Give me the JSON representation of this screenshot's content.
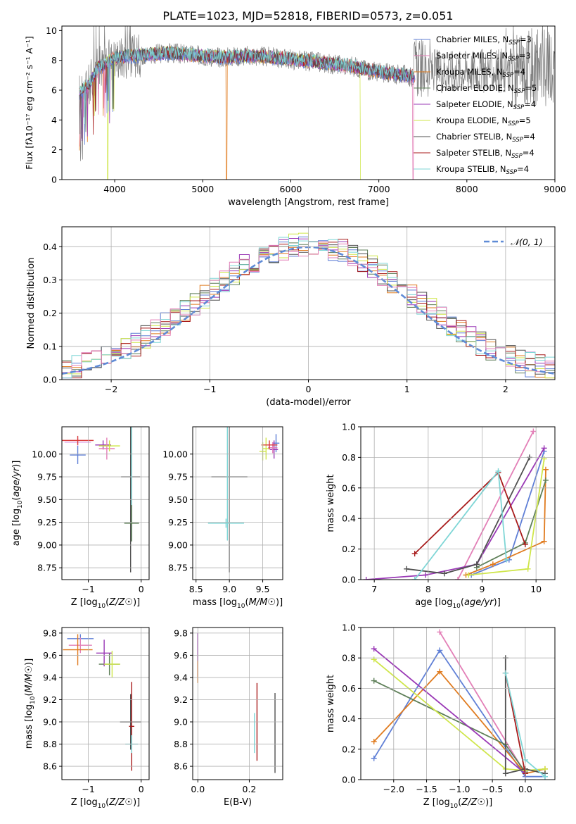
{
  "figure_title": "PLATE=1023, MJD=52818, FIBERID=0573, z=0.051",
  "colors": [
    "#5f7fd6",
    "#e37fb7",
    "#e07b1f",
    "#5e7f58",
    "#9a39b6",
    "#cfe64a",
    "#505050",
    "#a81b1b",
    "#7fd6d6"
  ],
  "colors_panel3": [
    "#e1a9ea",
    "#5f7fd6",
    "#d83b3b",
    "#9a39b6",
    "#e37fb7",
    "#cfe64a",
    "#505050",
    "#7fd6d6",
    "#5e7f58"
  ],
  "chart_data": [
    {
      "id": "spectrum",
      "type": "line",
      "xlabel": "wavelength [Angstrom, rest frame]",
      "ylabel": "Flux [fλ10⁻¹⁷ erg cm⁻² s⁻¹ A⁻¹]",
      "xlim": [
        3400,
        9000
      ],
      "ylim": [
        0,
        10.3
      ],
      "xticks": [
        "4000",
        "5000",
        "6000",
        "7000",
        "8000",
        "9000"
      ],
      "yticks": [
        "0",
        "2",
        "4",
        "6",
        "8",
        "10"
      ],
      "grid": false,
      "legend_position": "right",
      "legend": [
        "Chabrier MILES, N_SSP=3",
        "Salpeter MILES, N_SSP=3",
        "Kroupa MILES, N_SSP=4",
        "Chabrier ELODIE, N_SSP=5",
        "Salpeter ELODIE, N_SSP=4",
        "Kroupa ELODIE, N_SSP=5",
        "Chabrier STELIB, N_SSP=4",
        "Salpeter STELIB, N_SSP=4",
        "Kroupa STELIB, N_SSP=4"
      ],
      "legend_display": [
        [
          "Chabrier MILES, N",
          "SSP",
          "=3"
        ],
        [
          "Salpeter MILES, N",
          "SSP",
          "=3"
        ],
        [
          "Kroupa MILES, N",
          "SSP",
          "=4"
        ],
        [
          "Chabrier ELODIE, N",
          "SSP",
          "=5"
        ],
        [
          "Salpeter ELODIE, N",
          "SSP",
          "=4"
        ],
        [
          "Kroupa ELODIE, N",
          "SSP",
          "=5"
        ],
        [
          "Chabrier STELIB, N",
          "SSP",
          "=4"
        ],
        [
          "Salpeter STELIB, N",
          "SSP",
          "=4"
        ],
        [
          "Kroupa STELIB, N",
          "SSP",
          "=4"
        ]
      ],
      "continuum_wavelength": [
        3600,
        3700,
        3800,
        3900,
        4000,
        4200,
        4400,
        4600,
        4800,
        5000,
        5200,
        5500,
        5800,
        6100,
        6400,
        6700,
        7000,
        7300,
        7400
      ],
      "continuum_flux": [
        5.8,
        6.3,
        7.4,
        7.8,
        8.2,
        8.3,
        8.4,
        8.5,
        8.4,
        8.3,
        8.2,
        8.3,
        8.2,
        8.0,
        7.8,
        7.6,
        7.2,
        7.0,
        6.9
      ],
      "data_wavelength_range": [
        3600,
        9000
      ],
      "data_flux_range": [
        0.3,
        10.3
      ]
    },
    {
      "id": "residuals",
      "type": "step",
      "xlabel": "(data-model)/error",
      "ylabel": "Normed distribution",
      "xlim": [
        -2.5,
        2.5
      ],
      "ylim": [
        0,
        0.46
      ],
      "xticks": [
        "-2",
        "-1",
        "0",
        "1",
        "2"
      ],
      "yticks": [
        "0.0",
        "0.1",
        "0.2",
        "0.3",
        "0.4"
      ],
      "grid": true,
      "legend_position": "upper right",
      "legend": [
        "𝒩(0, 1)"
      ],
      "bin_width": 0.1,
      "bin_start": -2.5,
      "reference_curve": "normal(0, 1)"
    },
    {
      "id": "Z-age",
      "type": "errorbar",
      "xlabel": "Z [log10(Z/Z☉)]",
      "ylabel": "age  [log10(age/yr)]",
      "xlim": [
        -1.5,
        0.15
      ],
      "ylim": [
        8.62,
        10.3
      ],
      "xticks": [
        "-1",
        "0"
      ],
      "yticks": [
        "8.75",
        "9.00",
        "9.25",
        "9.50",
        "9.75",
        "10.00"
      ],
      "grid": true,
      "points": [
        {
          "x": -1.2,
          "xerr": 0.25,
          "y": 10.13,
          "yerr": 0.05
        },
        {
          "x": -1.2,
          "xerr": 0.15,
          "y": 9.99,
          "yerr": 0.1
        },
        {
          "x": -1.2,
          "xerr": 0.3,
          "y": 10.15,
          "yerr": 0.05
        },
        {
          "x": -0.72,
          "xerr": 0.15,
          "y": 10.1,
          "yerr": 0.05
        },
        {
          "x": -0.65,
          "xerr": 0.15,
          "y": 10.06,
          "yerr": 0.12
        },
        {
          "x": -0.6,
          "xerr": 0.2,
          "y": 10.09,
          "yerr": 0.06
        },
        {
          "x": -0.2,
          "xerr": 0.18,
          "y": 9.75,
          "yerr": 1.05
        },
        {
          "x": -0.18,
          "xerr": 0.02,
          "y": 9.75,
          "yerr": 0.7
        },
        {
          "x": -0.18,
          "xerr": 0.14,
          "y": 9.24,
          "yerr": 0.2
        }
      ]
    },
    {
      "id": "mass-age",
      "type": "errorbar",
      "xlabel": "mass [log10(M/M☉)]",
      "ylabel": "",
      "xlim": [
        8.45,
        9.8
      ],
      "ylim": [
        8.62,
        10.3
      ],
      "xticks": [
        "8.5",
        "9.0",
        "9.5"
      ],
      "yticks": [
        "8.75",
        "9.00",
        "9.25",
        "9.50",
        "9.75",
        "10.00"
      ],
      "grid": true,
      "points": [
        {
          "x": 9.7,
          "xerr": 0.05,
          "y": 10.12,
          "yerr": 0.1
        },
        {
          "x": 9.67,
          "xerr": 0.06,
          "y": 10.05,
          "yerr": 0.1
        },
        {
          "x": 9.65,
          "xerr": 0.07,
          "y": 10.07,
          "yerr": 0.06
        },
        {
          "x": 9.55,
          "xerr": 0.05,
          "y": 10.06,
          "yerr": 0.12
        },
        {
          "x": 9.6,
          "xerr": 0.12,
          "y": 10.1,
          "yerr": 0.05
        },
        {
          "x": 9.5,
          "xerr": 0.05,
          "y": 10.03,
          "yerr": 0.1
        },
        {
          "x": 9.0,
          "xerr": 0.27,
          "y": 9.75,
          "yerr": 1.05
        },
        {
          "x": 8.97,
          "xerr": 0.03,
          "y": 9.75,
          "yerr": 0.7
        },
        {
          "x": 8.95,
          "xerr": 0.27,
          "y": 9.24,
          "yerr": 0.05
        }
      ]
    },
    {
      "id": "age-weight",
      "type": "line",
      "xlabel": "age  [log10(age/yr)]",
      "ylabel": "mass weight",
      "xlim": [
        6.75,
        10.35
      ],
      "ylim": [
        0,
        1.0
      ],
      "xticks": [
        "7",
        "8",
        "9",
        "10"
      ],
      "yticks": [
        "0.0",
        "0.2",
        "0.4",
        "0.6",
        "0.8",
        "1.0"
      ],
      "grid": true,
      "series": [
        {
          "x": [
            8.8,
            9.5,
            10.15
          ],
          "y": [
            0.03,
            0.13,
            0.84
          ]
        },
        {
          "x": [
            8.55,
            9.95
          ],
          "y": [
            0.0,
            0.97
          ]
        },
        {
          "x": [
            8.7,
            9.2,
            10.15,
            10.18
          ],
          "y": [
            0.03,
            0.1,
            0.25,
            0.72
          ]
        },
        {
          "x": [
            8.9,
            9.8,
            10.18
          ],
          "y": [
            0.08,
            0.24,
            0.65
          ]
        },
        {
          "x": [
            6.85,
            7.95,
            8.9,
            10.15
          ],
          "y": [
            0.0,
            0.03,
            0.1,
            0.86
          ]
        },
        {
          "x": [
            8.75,
            9.85,
            10.15
          ],
          "y": [
            0.03,
            0.07,
            0.79
          ]
        },
        {
          "x": [
            7.6,
            8.3,
            8.9,
            9.88
          ],
          "y": [
            0.07,
            0.04,
            0.1,
            0.8
          ]
        },
        {
          "x": [
            7.75,
            9.3,
            9.8
          ],
          "y": [
            0.17,
            0.7,
            0.23
          ]
        },
        {
          "x": [
            7.75,
            9.3,
            9.45
          ],
          "y": [
            0.0,
            0.71,
            0.13
          ]
        }
      ]
    },
    {
      "id": "Z-mass",
      "type": "errorbar",
      "xlabel": "Z [log10(Z/Z☉)]",
      "ylabel": "mass [log10(M/M☉)]",
      "xlim": [
        -1.5,
        0.15
      ],
      "ylim": [
        8.48,
        9.85
      ],
      "xticks": [
        "-1",
        "0"
      ],
      "yticks": [
        "8.6",
        "8.8",
        "9.0",
        "9.2",
        "9.4",
        "9.6",
        "9.8"
      ],
      "grid": true,
      "points": [
        {
          "x": -1.15,
          "xerr": 0.25,
          "y": 9.75,
          "yerr": 0.04
        },
        {
          "x": -1.15,
          "xerr": 0.22,
          "y": 9.69,
          "yerr": 0.07
        },
        {
          "x": -1.2,
          "xerr": 0.28,
          "y": 9.65,
          "yerr": 0.14
        },
        {
          "x": -0.6,
          "xerr": 0.2,
          "y": 9.52,
          "yerr": 0.1
        },
        {
          "x": -0.7,
          "xerr": 0.15,
          "y": 9.62,
          "yerr": 0.12
        },
        {
          "x": -0.55,
          "xerr": 0.15,
          "y": 9.52,
          "yerr": 0.12
        },
        {
          "x": -0.2,
          "xerr": 0.2,
          "y": 9.0,
          "yerr": 0.25
        },
        {
          "x": -0.18,
          "xerr": 0.05,
          "y": 8.96,
          "yerr": 0.4
        },
        {
          "x": -0.18,
          "xerr": 0.12,
          "y": 8.8,
          "yerr": 0.08
        }
      ]
    },
    {
      "id": "EBV-mass",
      "type": "errorbar",
      "xlabel": "E(B-V)",
      "ylabel": "",
      "xlim": [
        -0.02,
        0.33
      ],
      "ylim": [
        8.48,
        9.85
      ],
      "xticks": [
        "0.0",
        "0.2"
      ],
      "yticks": [
        "8.6",
        "8.8",
        "9.0",
        "9.2",
        "9.4",
        "9.6",
        "9.8"
      ],
      "grid": true,
      "points": [
        {
          "x": 0.0,
          "xerr": 0,
          "y": 9.7,
          "yerr": 0.1
        },
        {
          "x": 0.0,
          "xerr": 0,
          "y": 9.65,
          "yerr": 0.08
        },
        {
          "x": 0.0,
          "xerr": 0,
          "y": 9.6,
          "yerr": 0.15
        },
        {
          "x": 0.0,
          "xerr": 0,
          "y": 9.5,
          "yerr": 0.1
        },
        {
          "x": 0.0,
          "xerr": 0,
          "y": 9.6,
          "yerr": 0.2
        },
        {
          "x": 0.0,
          "xerr": 0,
          "y": 9.45,
          "yerr": 0.1
        },
        {
          "x": 0.3,
          "xerr": 0,
          "y": 8.9,
          "yerr": 0.36
        },
        {
          "x": 0.23,
          "xerr": 0,
          "y": 9.0,
          "yerr": 0.35
        },
        {
          "x": 0.22,
          "xerr": 0,
          "y": 8.9,
          "yerr": 0.18
        }
      ]
    },
    {
      "id": "Z-weight",
      "type": "line",
      "xlabel": "Z [log10(Z/Z☉)]",
      "ylabel": "mass weight",
      "xlim": [
        -2.5,
        0.45
      ],
      "ylim": [
        0,
        1.0
      ],
      "xticks": [
        "-2.0",
        "-1.5",
        "-1.0",
        "-0.5",
        "0.0"
      ],
      "yticks": [
        "0.0",
        "0.2",
        "0.4",
        "0.6",
        "0.8",
        "1.0"
      ],
      "grid": true,
      "series": [
        {
          "x": [
            -2.3,
            -1.3,
            0.0,
            0.3
          ],
          "y": [
            0.14,
            0.85,
            0.02,
            0.02
          ]
        },
        {
          "x": [
            -1.3,
            0.0
          ],
          "y": [
            0.97,
            0.04
          ]
        },
        {
          "x": [
            -2.3,
            -1.3,
            0.0,
            0.3
          ],
          "y": [
            0.25,
            0.71,
            0.04,
            0.07
          ]
        },
        {
          "x": [
            -2.3,
            -0.3,
            0.0
          ],
          "y": [
            0.65,
            0.23,
            0.05
          ]
        },
        {
          "x": [
            -2.3,
            0.0
          ],
          "y": [
            0.86,
            0.04
          ]
        },
        {
          "x": [
            -2.3,
            -0.3,
            0.0,
            0.3
          ],
          "y": [
            0.79,
            0.07,
            0.06,
            0.07
          ]
        },
        {
          "x": [
            -0.3,
            -0.3,
            0.0,
            0.3
          ],
          "y": [
            0.8,
            0.04,
            0.07,
            0.04
          ]
        },
        {
          "x": [
            -0.3,
            0.0
          ],
          "y": [
            0.7,
            0.04
          ]
        },
        {
          "x": [
            -0.3,
            0.0,
            0.3
          ],
          "y": [
            0.7,
            0.13,
            0.02
          ]
        }
      ]
    }
  ]
}
